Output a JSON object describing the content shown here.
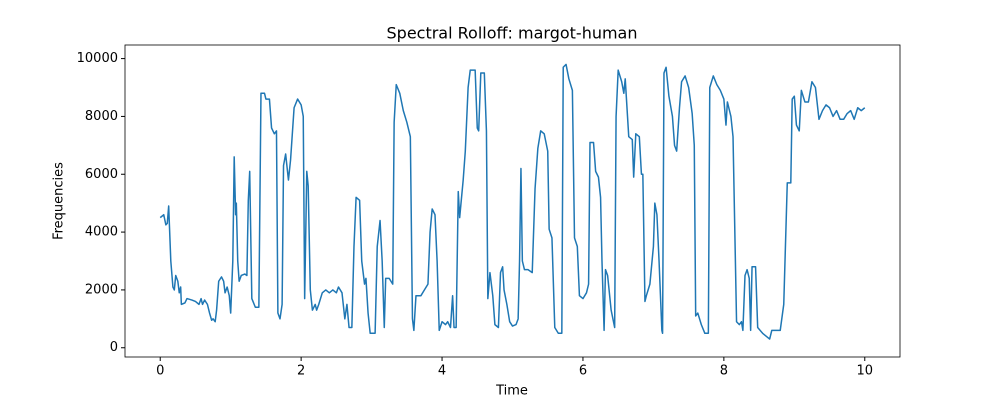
{
  "chart_data": {
    "type": "line",
    "title": "Spectral Rolloff: margot-human",
    "xlabel": "Time",
    "ylabel": "Frequencies",
    "xlim": [
      -0.5,
      10.5
    ],
    "ylim": [
      -320,
      10470
    ],
    "xticks": [
      0,
      2,
      4,
      6,
      8,
      10
    ],
    "yticks": [
      0,
      2000,
      4000,
      6000,
      8000,
      10000
    ],
    "x": [
      0.0,
      0.05,
      0.08,
      0.1,
      0.12,
      0.15,
      0.18,
      0.2,
      0.22,
      0.25,
      0.27,
      0.29,
      0.3,
      0.35,
      0.38,
      0.45,
      0.5,
      0.55,
      0.58,
      0.6,
      0.63,
      0.67,
      0.7,
      0.73,
      0.75,
      0.78,
      0.8,
      0.83,
      0.87,
      0.9,
      0.92,
      0.95,
      0.98,
      1.0,
      1.03,
      1.05,
      1.07,
      1.08,
      1.1,
      1.12,
      1.15,
      1.2,
      1.23,
      1.25,
      1.27,
      1.3,
      1.35,
      1.4,
      1.43,
      1.48,
      1.5,
      1.55,
      1.58,
      1.62,
      1.65,
      1.67,
      1.7,
      1.73,
      1.75,
      1.78,
      1.82,
      1.85,
      1.9,
      1.95,
      2.0,
      2.03,
      2.05,
      2.08,
      2.1,
      2.13,
      2.16,
      2.2,
      2.22,
      2.25,
      2.3,
      2.35,
      2.4,
      2.45,
      2.5,
      2.53,
      2.58,
      2.62,
      2.65,
      2.68,
      2.72,
      2.75,
      2.78,
      2.83,
      2.86,
      2.9,
      2.92,
      2.95,
      2.98,
      3.05,
      3.08,
      3.12,
      3.15,
      3.18,
      3.2,
      3.25,
      3.3,
      3.32,
      3.35,
      3.4,
      3.45,
      3.5,
      3.55,
      3.58,
      3.6,
      3.63,
      3.7,
      3.75,
      3.8,
      3.83,
      3.86,
      3.9,
      3.93,
      3.96,
      4.0,
      4.05,
      4.08,
      4.12,
      4.15,
      4.17,
      4.2,
      4.23,
      4.25,
      4.3,
      4.33,
      4.37,
      4.4,
      4.47,
      4.5,
      4.52,
      4.55,
      4.6,
      4.63,
      4.65,
      4.68,
      4.72,
      4.75,
      4.8,
      4.83,
      4.86,
      4.88,
      4.92,
      4.96,
      5.0,
      5.05,
      5.08,
      5.1,
      5.12,
      5.14,
      5.17,
      5.22,
      5.28,
      5.32,
      5.36,
      5.4,
      5.45,
      5.5,
      5.52,
      5.56,
      5.6,
      5.65,
      5.7,
      5.72,
      5.76,
      5.8,
      5.85,
      5.88,
      5.92,
      5.95,
      6.0,
      6.05,
      6.08,
      6.1,
      6.15,
      6.18,
      6.22,
      6.25,
      6.27,
      6.3,
      6.32,
      6.35,
      6.4,
      6.45,
      6.47,
      6.5,
      6.55,
      6.58,
      6.6,
      6.65,
      6.7,
      6.72,
      6.75,
      6.8,
      6.83,
      6.85,
      6.88,
      6.9,
      6.95,
      7.0,
      7.02,
      7.05,
      7.08,
      7.12,
      7.13,
      7.15,
      7.18,
      7.22,
      7.27,
      7.3,
      7.33,
      7.37,
      7.4,
      7.45,
      7.5,
      7.55,
      7.58,
      7.6,
      7.63,
      7.68,
      7.73,
      7.78,
      7.8,
      7.85,
      7.9,
      7.95,
      8.0,
      8.03,
      8.05,
      8.1,
      8.13,
      8.18,
      8.22,
      8.25,
      8.27,
      8.3,
      8.33,
      8.36,
      8.38,
      8.4,
      8.45,
      8.48,
      8.55,
      8.6,
      8.65,
      8.68,
      8.8,
      8.85,
      8.9,
      8.95,
      8.97,
      9.0,
      9.03,
      9.07,
      9.1,
      9.15,
      9.2,
      9.25,
      9.3,
      9.35,
      9.4,
      9.45,
      9.5,
      9.55,
      9.6,
      9.65,
      9.7,
      9.75,
      9.8,
      9.85,
      9.9,
      9.95,
      10.0
    ],
    "series": [
      {
        "color": "#1f77b4",
        "values": [
          4500,
          4600,
          4250,
          4300,
          4900,
          3000,
          2100,
          2000,
          2500,
          2300,
          1900,
          2100,
          1500,
          1550,
          1700,
          1650,
          1600,
          1500,
          1700,
          1500,
          1650,
          1500,
          1200,
          950,
          1000,
          900,
          1300,
          2300,
          2450,
          2300,
          1900,
          2100,
          1800,
          1200,
          3000,
          6600,
          4600,
          5000,
          3000,
          2300,
          2500,
          2550,
          2500,
          5100,
          6100,
          1700,
          1400,
          1400,
          8800,
          8800,
          8600,
          8600,
          7600,
          7400,
          7500,
          1200,
          1000,
          1500,
          6300,
          6700,
          5800,
          6500,
          8300,
          8600,
          8400,
          8000,
          1700,
          6100,
          5600,
          2000,
          1300,
          1500,
          1300,
          1500,
          1900,
          2000,
          1900,
          2000,
          1900,
          2100,
          1900,
          1000,
          1500,
          700,
          700,
          3500,
          5200,
          5100,
          3000,
          2200,
          2400,
          1200,
          500,
          500,
          3500,
          4400,
          3000,
          700,
          2400,
          2400,
          2200,
          7800,
          9100,
          8800,
          8200,
          7800,
          7300,
          1000,
          600,
          1800,
          1800,
          2000,
          2200,
          4000,
          4800,
          4600,
          3000,
          600,
          900,
          800,
          900,
          700,
          1800,
          700,
          700,
          5400,
          4500,
          5800,
          6800,
          9000,
          9600,
          9600,
          7600,
          7500,
          9500,
          9500,
          7500,
          1700,
          2600,
          1800,
          800,
          700,
          2600,
          2800,
          2000,
          1500,
          900,
          750,
          800,
          1000,
          3000,
          6200,
          3000,
          2700,
          2700,
          2600,
          5500,
          6900,
          7500,
          7400,
          6800,
          4100,
          3800,
          700,
          500,
          500,
          9700,
          9800,
          9300,
          8900,
          3800,
          3500,
          1800,
          1700,
          1900,
          2200,
          7100,
          7100,
          6100,
          5900,
          5200,
          3000,
          600,
          2700,
          2500,
          1300,
          700,
          8000,
          9600,
          9200,
          8800,
          9300,
          7300,
          7200,
          5900,
          7400,
          7300,
          6000,
          6000,
          1600,
          1800,
          2200,
          3500,
          5000,
          4600,
          3000,
          600,
          500,
          9500,
          9700,
          8700,
          8000,
          7000,
          6800,
          8300,
          9200,
          9400,
          9000,
          8100,
          7000,
          1100,
          1200,
          800,
          500,
          500,
          9000,
          9400,
          9100,
          8900,
          8600,
          7700,
          8500,
          8000,
          7300,
          900,
          800,
          900,
          600,
          2500,
          2700,
          2400,
          600,
          2800,
          2800,
          700,
          500,
          400,
          300,
          600,
          600,
          1500,
          5700,
          5700,
          8600,
          8700,
          7700,
          7500,
          8900,
          8500,
          8500,
          9200,
          9000,
          7900,
          8200,
          8400,
          8300,
          8000,
          8200,
          7900,
          7900,
          8100,
          8200,
          7900,
          8300,
          8200,
          8300
        ]
      }
    ]
  }
}
